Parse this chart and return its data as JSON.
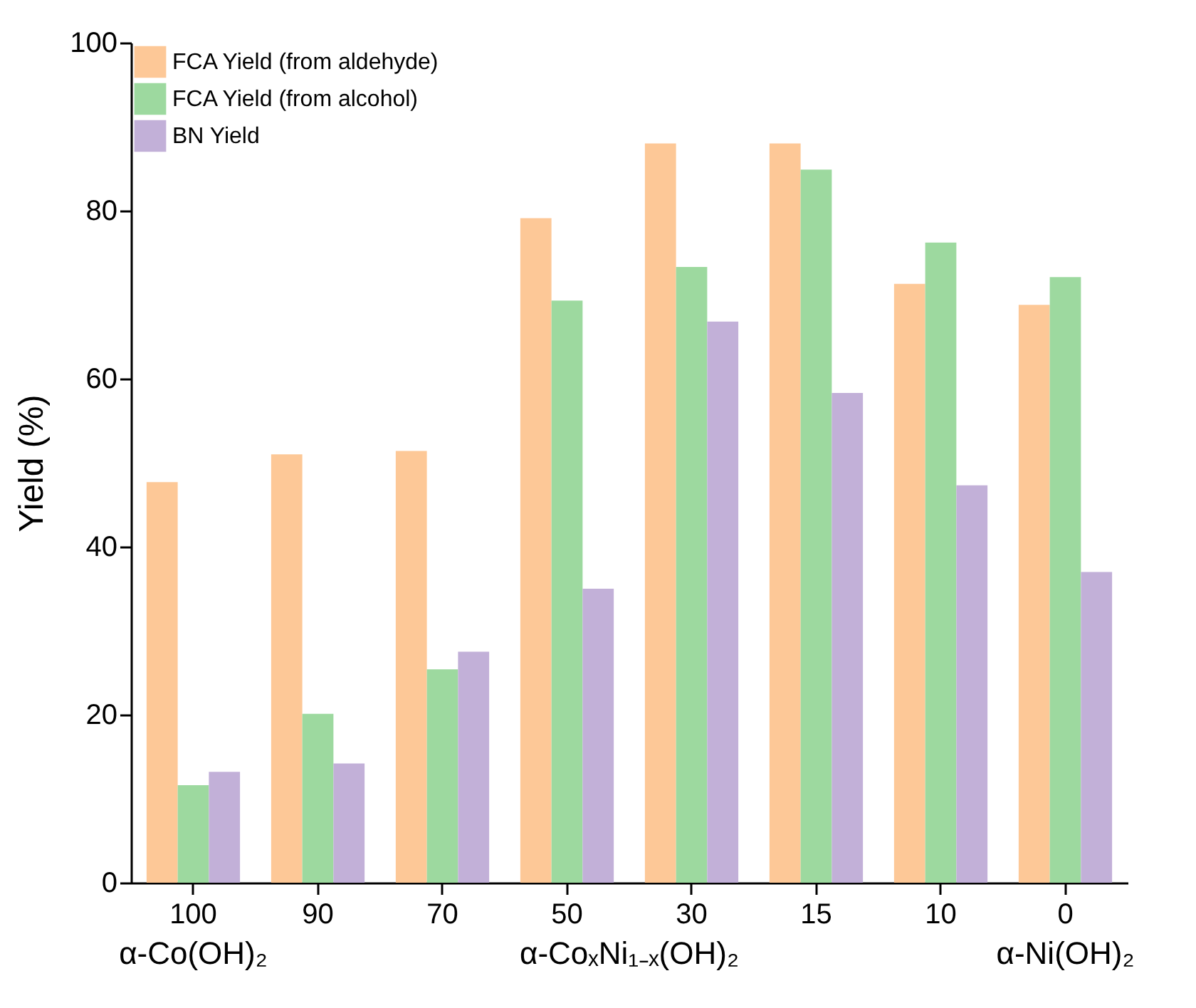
{
  "chart_data": {
    "type": "bar",
    "ylabel": "Yield (%)",
    "categories": [
      "100",
      "90",
      "70",
      "50",
      "30",
      "15",
      "10",
      "0"
    ],
    "series": [
      {
        "name": "FCA Yield (from aldehyde)",
        "color": "#fdc897",
        "values": [
          47.7,
          51.0,
          51.4,
          79.1,
          88.0,
          88.0,
          71.3,
          68.8
        ]
      },
      {
        "name": "FCA Yield (from alcohol)",
        "color": "#9dd99f",
        "values": [
          11.6,
          20.1,
          25.4,
          69.3,
          73.3,
          84.9,
          76.2,
          72.1
        ]
      },
      {
        "name": "BN Yield",
        "color": "#c2b0d8",
        "values": [
          13.2,
          14.2,
          27.5,
          35.0,
          66.8,
          58.3,
          47.3,
          37.0
        ]
      }
    ],
    "ylim": [
      0,
      100
    ],
    "yticks": [
      0,
      20,
      40,
      60,
      80,
      100
    ],
    "grid": false,
    "legend": "top left",
    "annotations": [
      "α-Co(OH)₂",
      "α-CoₓNi₁₋ₓ(OH)₂",
      "α-Ni(OH)₂"
    ]
  }
}
